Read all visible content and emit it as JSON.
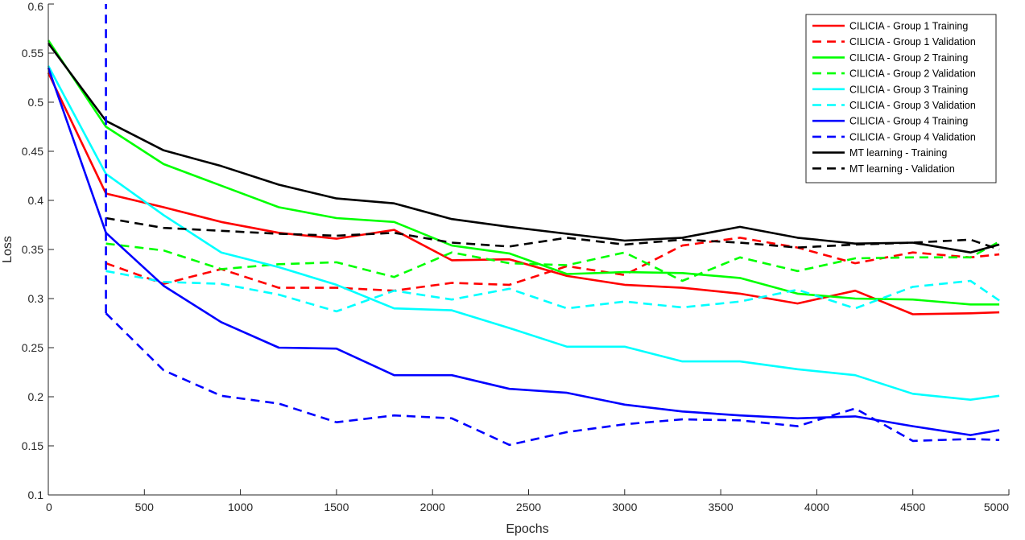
{
  "chart_data": {
    "type": "line",
    "title": "",
    "xlabel": "Epochs",
    "ylabel": "Loss",
    "xlim": [
      0,
      5000
    ],
    "ylim": [
      0.1,
      0.6
    ],
    "x_ticks": [
      0,
      500,
      1000,
      1500,
      2000,
      2500,
      3000,
      3500,
      4000,
      4500,
      5000
    ],
    "y_ticks": [
      0.1,
      0.15,
      0.2,
      0.25,
      0.3,
      0.35,
      0.4,
      0.45,
      0.5,
      0.55,
      0.6
    ],
    "x_tick_labels": [
      "0",
      "500",
      "1000",
      "1500",
      "2000",
      "2500",
      "3000",
      "3500",
      "4000",
      "4500",
      "5000"
    ],
    "y_tick_labels": [
      "0.1",
      "0.15",
      "0.2",
      "0.25",
      "0.3",
      "0.35",
      "0.4",
      "0.45",
      "0.5",
      "0.55",
      "0.6"
    ],
    "grid": false,
    "legend_position": "top-right",
    "vertical_marker": {
      "x": 300,
      "y_range": [
        0.285,
        0.6
      ],
      "color": "#0000FF",
      "style": "dashed"
    },
    "series": [
      {
        "name": "CILICIA - Group 1 Training",
        "color": "#FF0000",
        "style": "solid",
        "x": [
          0,
          300,
          600,
          900,
          1200,
          1500,
          1800,
          2100,
          2400,
          2700,
          3000,
          3300,
          3600,
          3900,
          4200,
          4500,
          4800,
          4950
        ],
        "y": [
          0.53,
          0.407,
          0.393,
          0.378,
          0.367,
          0.361,
          0.37,
          0.339,
          0.34,
          0.323,
          0.314,
          0.311,
          0.305,
          0.295,
          0.308,
          0.284,
          0.285,
          0.286
        ]
      },
      {
        "name": "CILICIA - Group 1 Validation",
        "color": "#FF0000",
        "style": "dashed",
        "x": [
          300,
          600,
          900,
          1200,
          1500,
          1800,
          2100,
          2400,
          2700,
          3000,
          3300,
          3600,
          3900,
          4200,
          4500,
          4800,
          4950
        ],
        "y": [
          0.336,
          0.315,
          0.33,
          0.311,
          0.311,
          0.308,
          0.316,
          0.314,
          0.333,
          0.324,
          0.354,
          0.362,
          0.352,
          0.336,
          0.347,
          0.342,
          0.345
        ]
      },
      {
        "name": "CILICIA - Group 2 Training",
        "color": "#00FF00",
        "style": "solid",
        "x": [
          0,
          300,
          600,
          900,
          1200,
          1500,
          1800,
          2100,
          2400,
          2700,
          3000,
          3300,
          3600,
          3900,
          4200,
          4500,
          4800,
          4950
        ],
        "y": [
          0.563,
          0.475,
          0.437,
          0.415,
          0.393,
          0.382,
          0.378,
          0.354,
          0.346,
          0.325,
          0.327,
          0.326,
          0.321,
          0.305,
          0.3,
          0.299,
          0.294,
          0.294
        ]
      },
      {
        "name": "CILICIA - Group 2 Validation",
        "color": "#00FF00",
        "style": "dashed",
        "x": [
          300,
          600,
          900,
          1200,
          1500,
          1800,
          2100,
          2400,
          2700,
          3000,
          3300,
          3600,
          3900,
          4200,
          4500,
          4800,
          4950
        ],
        "y": [
          0.356,
          0.349,
          0.33,
          0.335,
          0.337,
          0.322,
          0.347,
          0.336,
          0.334,
          0.347,
          0.318,
          0.342,
          0.328,
          0.341,
          0.342,
          0.342,
          0.358
        ]
      },
      {
        "name": "CILICIA - Group 3 Training",
        "color": "#00FFFF",
        "style": "solid",
        "x": [
          0,
          300,
          600,
          900,
          1200,
          1500,
          1800,
          2100,
          2400,
          2700,
          3000,
          3300,
          3600,
          3900,
          4200,
          4500,
          4800,
          4950
        ],
        "y": [
          0.537,
          0.427,
          0.385,
          0.347,
          0.332,
          0.314,
          0.29,
          0.288,
          0.27,
          0.251,
          0.251,
          0.236,
          0.236,
          0.228,
          0.222,
          0.203,
          0.197,
          0.201
        ]
      },
      {
        "name": "CILICIA - Group 3 Validation",
        "color": "#00FFFF",
        "style": "dashed",
        "x": [
          300,
          600,
          900,
          1200,
          1500,
          1800,
          2100,
          2400,
          2700,
          3000,
          3300,
          3600,
          3900,
          4200,
          4500,
          4800,
          4950
        ],
        "y": [
          0.328,
          0.317,
          0.315,
          0.304,
          0.287,
          0.308,
          0.299,
          0.31,
          0.29,
          0.297,
          0.291,
          0.297,
          0.309,
          0.29,
          0.312,
          0.318,
          0.298
        ]
      },
      {
        "name": "CILICIA - Group 4 Training",
        "color": "#0000FF",
        "style": "solid",
        "x": [
          0,
          300,
          600,
          900,
          1200,
          1500,
          1800,
          2100,
          2400,
          2700,
          3000,
          3300,
          3600,
          3900,
          4200,
          4500,
          4800,
          4950
        ],
        "y": [
          0.535,
          0.367,
          0.313,
          0.276,
          0.25,
          0.249,
          0.222,
          0.222,
          0.208,
          0.204,
          0.192,
          0.185,
          0.181,
          0.178,
          0.18,
          0.17,
          0.161,
          0.166
        ]
      },
      {
        "name": "CILICIA - Group 4 Validation",
        "color": "#0000FF",
        "style": "dashed",
        "x": [
          300,
          600,
          900,
          1200,
          1500,
          1800,
          2100,
          2400,
          2700,
          3000,
          3300,
          3600,
          3900,
          4200,
          4500,
          4800,
          4950
        ],
        "y": [
          0.285,
          0.227,
          0.201,
          0.193,
          0.174,
          0.181,
          0.178,
          0.151,
          0.164,
          0.172,
          0.177,
          0.176,
          0.17,
          0.188,
          0.155,
          0.157,
          0.156
        ]
      },
      {
        "name": "MT learning - Training",
        "color": "#000000",
        "style": "solid",
        "x": [
          0,
          300,
          600,
          900,
          1200,
          1500,
          1800,
          2100,
          2400,
          2700,
          3000,
          3300,
          3600,
          3900,
          4200,
          4500,
          4800,
          4950
        ],
        "y": [
          0.56,
          0.481,
          0.451,
          0.435,
          0.416,
          0.402,
          0.397,
          0.381,
          0.373,
          0.366,
          0.359,
          0.362,
          0.373,
          0.362,
          0.356,
          0.357,
          0.347,
          0.355
        ]
      },
      {
        "name": "MT learning - Validation",
        "color": "#000000",
        "style": "dashed",
        "x": [
          300,
          600,
          900,
          1200,
          1500,
          1800,
          2100,
          2400,
          2700,
          3000,
          3300,
          3600,
          3900,
          4200,
          4500,
          4800,
          4950
        ],
        "y": [
          0.382,
          0.372,
          0.369,
          0.366,
          0.364,
          0.367,
          0.357,
          0.353,
          0.362,
          0.355,
          0.36,
          0.357,
          0.352,
          0.355,
          0.357,
          0.36,
          0.35
        ]
      }
    ]
  }
}
